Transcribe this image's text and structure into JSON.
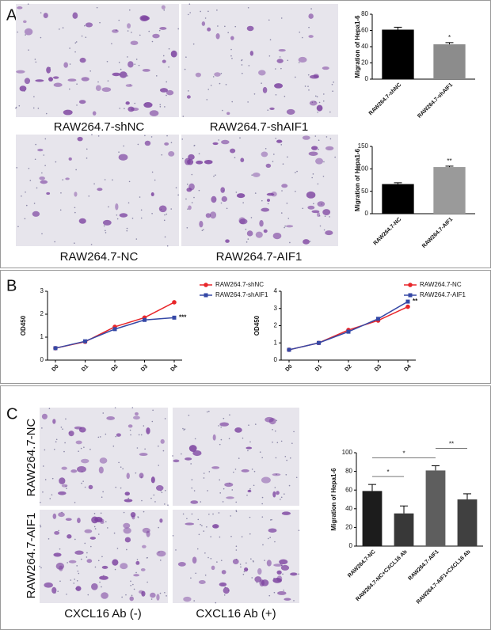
{
  "figure": {
    "panel_labels": [
      "A",
      "B",
      "C"
    ],
    "a_captions": [
      "RAW264.7-shNC",
      "RAW264.7-shAIF1",
      "RAW264.7-NC",
      "RAW264.7-AIF1"
    ],
    "c_row_labels": [
      "RAW264.7-NC",
      "RAW264.7-AIF1"
    ],
    "c_col_labels": [
      "CXCL16 Ab (-)",
      "CXCL16 Ab (+)"
    ]
  },
  "chart_data": [
    {
      "type": "bar",
      "ylabel": "Migration of Hepa1-6",
      "categories": [
        "RAW264.7-shNC",
        "RAW264.7-shAIF1"
      ],
      "values": [
        61,
        43
      ],
      "errors": [
        3,
        2
      ],
      "colors": [
        "#000000",
        "#8c8c8c"
      ],
      "sig": [
        null,
        "*"
      ],
      "ylim": [
        0,
        80
      ],
      "yticks": [
        0,
        20,
        40,
        60,
        80
      ]
    },
    {
      "type": "bar",
      "ylabel": "Migration of Hepa1-6",
      "categories": [
        "RAW264.7-NC",
        "RAW264.7-AIF1"
      ],
      "values": [
        66,
        104
      ],
      "errors": [
        3,
        2
      ],
      "colors": [
        "#000000",
        "#9a9a9a"
      ],
      "sig": [
        null,
        "**"
      ],
      "ylim": [
        0,
        150
      ],
      "yticks": [
        0,
        50,
        100,
        150
      ]
    },
    {
      "type": "line",
      "ylabel": "OD450",
      "categories": [
        "D0",
        "D1",
        "D2",
        "D3",
        "D4"
      ],
      "series": [
        {
          "name": "RAW264.7-shNC",
          "color": "#e8262a",
          "marker": "circle",
          "values": [
            0.52,
            0.8,
            1.45,
            1.85,
            2.52
          ]
        },
        {
          "name": "RAW264.7-shAIF1",
          "color": "#3548a6",
          "marker": "square",
          "values": [
            0.52,
            0.82,
            1.35,
            1.75,
            1.85
          ],
          "annotation": "***"
        }
      ],
      "ylim": [
        0,
        3
      ],
      "yticks": [
        0,
        1,
        2,
        3
      ]
    },
    {
      "type": "line",
      "ylabel": "OD450",
      "categories": [
        "D0",
        "D1",
        "D2",
        "D3",
        "D4"
      ],
      "series": [
        {
          "name": "RAW264.7-NC",
          "color": "#e8262a",
          "marker": "circle",
          "values": [
            0.6,
            1.0,
            1.75,
            2.3,
            3.1
          ]
        },
        {
          "name": "RAW264.7-AIF1",
          "color": "#3548a6",
          "marker": "square",
          "values": [
            0.6,
            1.0,
            1.65,
            2.4,
            3.4
          ],
          "annotation": "**"
        }
      ],
      "ylim": [
        0,
        4
      ],
      "yticks": [
        0,
        1,
        2,
        3,
        4
      ]
    },
    {
      "type": "bar",
      "ylabel": "Migration of Hepa1-6",
      "categories": [
        "RAW264.7-NC",
        "RAW264.7-NC+CXCL16 Ab",
        "RAW264.7-AIF1",
        "RAW264.7-AIF1+CXCL16 Ab"
      ],
      "values": [
        59,
        35,
        81,
        50
      ],
      "errors": [
        7,
        8,
        5,
        6
      ],
      "colors": [
        "#1c1c1c",
        "#383838",
        "#5e5e5e",
        "#404040"
      ],
      "comparisons": [
        {
          "label": "*",
          "categories": [
            "RAW264.7-NC",
            "RAW264.7-NC+CXCL16 Ab"
          ]
        },
        {
          "label": "*",
          "categories": [
            "RAW264.7-NC",
            "RAW264.7-AIF1"
          ]
        },
        {
          "label": "**",
          "categories": [
            "RAW264.7-AIF1",
            "RAW264.7-AIF1+CXCL16 Ab"
          ]
        }
      ],
      "ylim": [
        0,
        100
      ],
      "yticks": [
        0,
        20,
        40,
        60,
        80,
        100
      ]
    }
  ]
}
